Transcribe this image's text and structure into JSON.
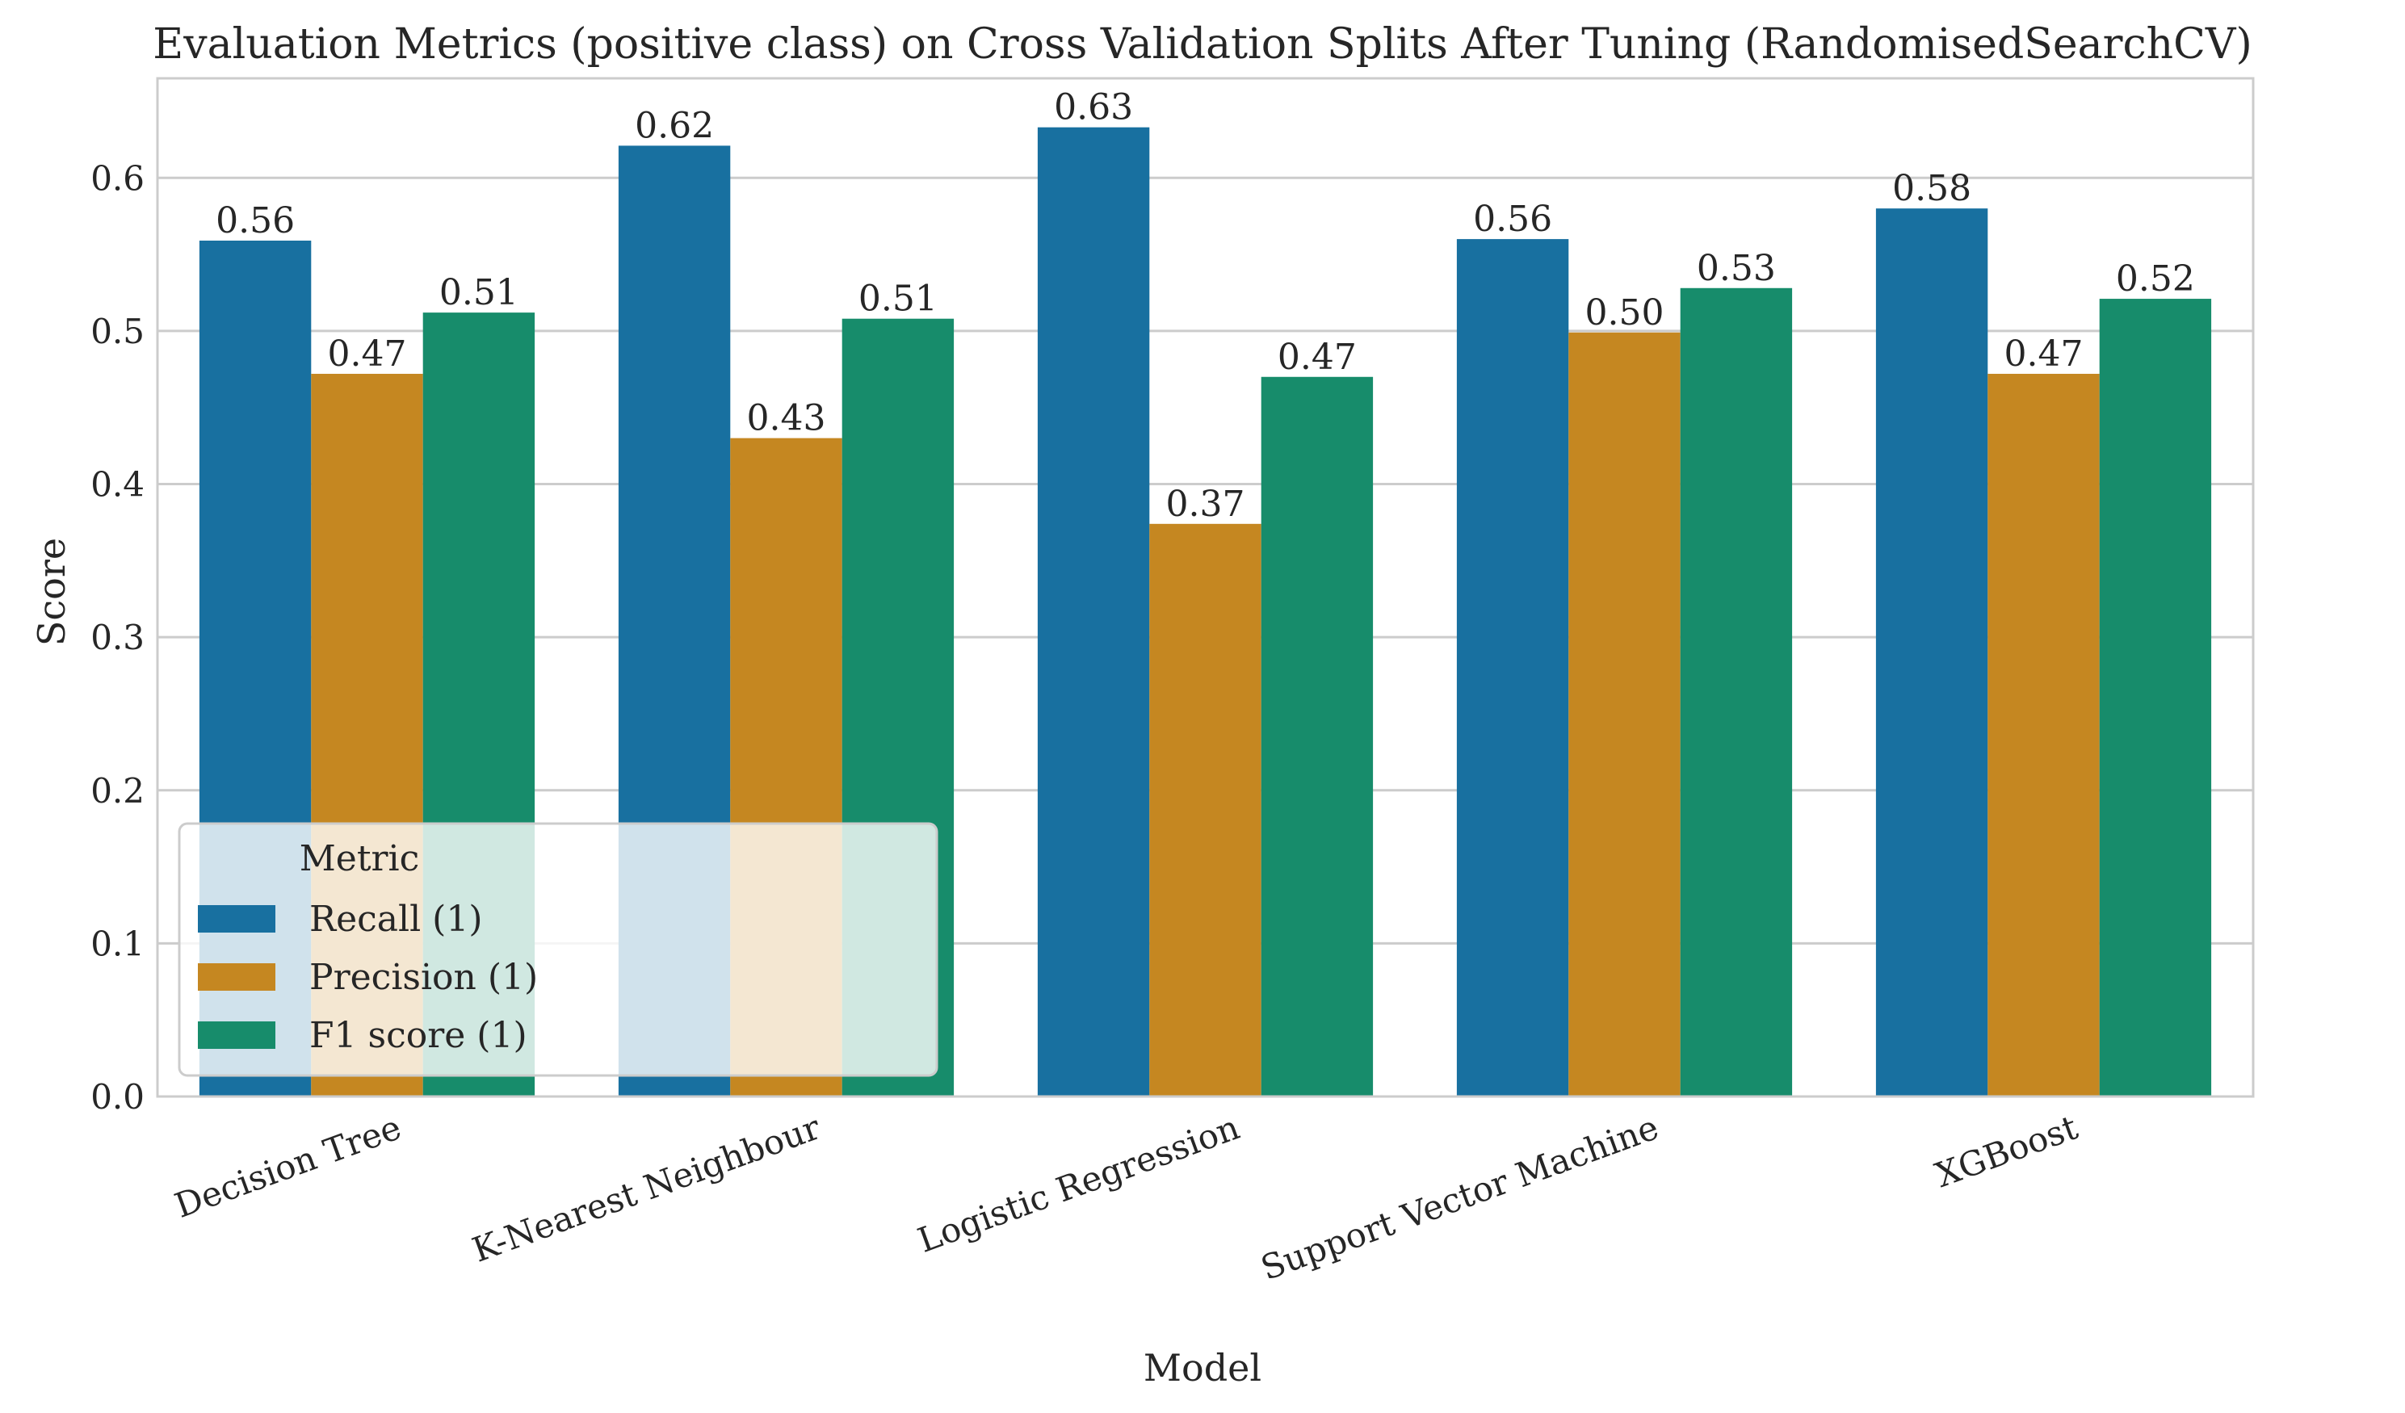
{
  "chart_data": {
    "type": "bar",
    "title": "Evaluation Metrics (positive class) on Cross Validation Splits After Tuning (RandomisedSearchCV)",
    "xlabel": "Model",
    "ylabel": "Score",
    "categories": [
      "Decision Tree",
      "K-Nearest Neighbour",
      "Logistic Regression",
      "Support Vector Machine",
      "XGBoost"
    ],
    "series": [
      {
        "name": "Recall (1)",
        "color": "#1870a0",
        "values": [
          0.559,
          0.621,
          0.633,
          0.56,
          0.58
        ],
        "labels": [
          "0.56",
          "0.62",
          "0.63",
          "0.56",
          "0.58"
        ]
      },
      {
        "name": "Precision (1)",
        "color": "#c58721",
        "values": [
          0.472,
          0.43,
          0.374,
          0.499,
          0.472
        ],
        "labels": [
          "0.47",
          "0.43",
          "0.37",
          "0.50",
          "0.47"
        ]
      },
      {
        "name": "F1 score (1)",
        "color": "#178c6b",
        "values": [
          0.512,
          0.508,
          0.47,
          0.528,
          0.521
        ],
        "labels": [
          "0.51",
          "0.51",
          "0.47",
          "0.53",
          "0.52"
        ]
      }
    ],
    "ylim": [
      0,
      0.665
    ],
    "yticks": [
      "0.0",
      "0.1",
      "0.2",
      "0.3",
      "0.4",
      "0.5",
      "0.6"
    ],
    "grid": "horizontal",
    "legend": {
      "title": "Metric",
      "placement": "lower-left"
    }
  }
}
